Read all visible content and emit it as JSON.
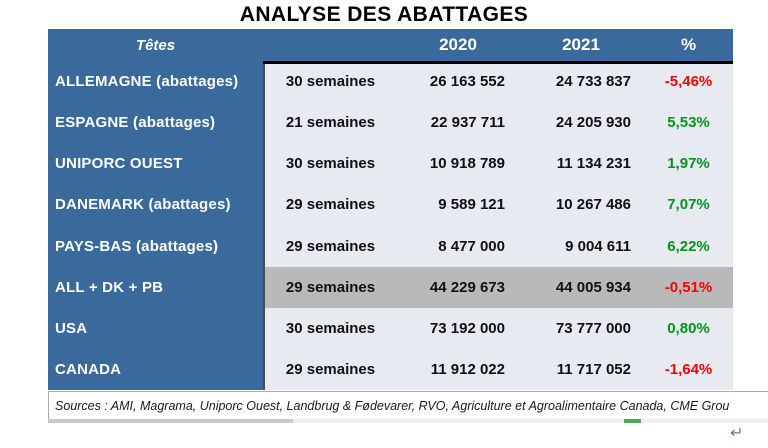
{
  "page_title": "ANALYSE DES ABATTAGES",
  "colors": {
    "header_blue": "#3A699C",
    "row_bg": "#E8EAF2",
    "highlight_bg": "#B9B9B9",
    "positive_green": "#00961E",
    "negative_red": "#FF0000"
  },
  "table": {
    "header": {
      "label_col": "Têtes",
      "weeks_col": "",
      "year1": "2020",
      "year2": "2021",
      "pct": "%"
    },
    "rows": [
      {
        "label": "ALLEMAGNE (abattages)",
        "weeks": "30 semaines",
        "y2020": "26 163 552",
        "y2021": "24 733 837",
        "pct": "-5,46%",
        "pct_color": "#FF0000",
        "highlight": false
      },
      {
        "label": "ESPAGNE (abattages)",
        "weeks": "21 semaines",
        "y2020": "22 937 711",
        "y2021": "24 205 930",
        "pct": "5,53%",
        "pct_color": "#00961E",
        "highlight": false
      },
      {
        "label": "UNIPORC OUEST",
        "weeks": "30 semaines",
        "y2020": "10 918 789",
        "y2021": "11 134 231",
        "pct": "1,97%",
        "pct_color": "#00961E",
        "highlight": false
      },
      {
        "label": "DANEMARK (abattages)",
        "weeks": "29 semaines",
        "y2020": "9 589 121",
        "y2021": "10 267 486",
        "pct": "7,07%",
        "pct_color": "#00961E",
        "highlight": false
      },
      {
        "label": "PAYS-BAS (abattages)",
        "weeks": "29 semaines",
        "y2020": "8 477 000",
        "y2021": "9 004 611",
        "pct": "6,22%",
        "pct_color": "#00961E",
        "highlight": false
      },
      {
        "label": "ALL + DK + PB",
        "weeks": "29 semaines",
        "y2020": "44 229 673",
        "y2021": "44 005 934",
        "pct": "-0,51%",
        "pct_color": "#FF0000",
        "highlight": true
      },
      {
        "label": "USA",
        "weeks": "30 semaines",
        "y2020": "73 192 000",
        "y2021": "73 777 000",
        "pct": "0,80%",
        "pct_color": "#00961E",
        "highlight": false
      },
      {
        "label": "CANADA",
        "weeks": "29 semaines",
        "y2020": "11 912 022",
        "y2021": "11 717 052",
        "pct": "-1,64%",
        "pct_color": "#FF0000",
        "highlight": false
      }
    ]
  },
  "footer": {
    "sources": "Sources : AMI, Magrama, Uniporc Ouest, Landbrug & Fødevarer, RVO, Agriculture et Agroalimentaire Canada, CME Grou"
  },
  "marks": {
    "return_symbol": "↵"
  }
}
